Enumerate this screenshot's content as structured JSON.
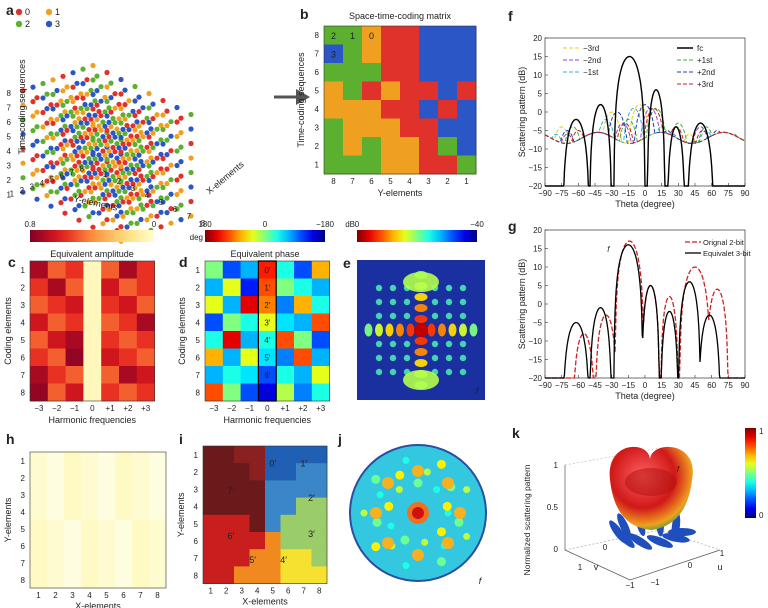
{
  "panels": {
    "a": {
      "label": "a",
      "legend": [
        "0",
        "1",
        "2",
        "3"
      ],
      "legend_colors": [
        "#e0312b",
        "#f0a020",
        "#5bb030",
        "#2a56c6"
      ],
      "zlabel": "Time-coding sequences",
      "ylabel": "Y-elements",
      "xlabel": "X-elements",
      "zticks": [
        "1",
        "2",
        "3",
        "4",
        "5",
        "6",
        "7",
        "8"
      ],
      "yticks": [
        "8",
        "7",
        "6",
        "5",
        "4",
        "3",
        "2",
        "1"
      ],
      "xticks": [
        "1",
        "2",
        "3",
        "4",
        "5",
        "6",
        "7",
        "8"
      ]
    },
    "b": {
      "label": "b",
      "title": "Space-time-coding matrix",
      "ylabel": "Time-coding sequences",
      "xlabel": "Y-elements",
      "yticks": [
        "8",
        "7",
        "6",
        "5",
        "4",
        "3",
        "2",
        "1"
      ],
      "xticks": [
        "8",
        "7",
        "6",
        "5",
        "4",
        "3",
        "2",
        "1"
      ],
      "annotations": [
        "2",
        "1",
        "0",
        "3"
      ]
    },
    "c": {
      "label": "c",
      "title": "Equivalent amplitude",
      "cbar_left": "0.8",
      "cbar_right": "0",
      "ylabel": "Coding elements",
      "xlabel": "Harmonic frequencies",
      "xticks": [
        "−3",
        "−2",
        "−1",
        "0",
        "+1",
        "+2",
        "+3"
      ],
      "yticks": [
        "1",
        "2",
        "3",
        "4",
        "5",
        "6",
        "7",
        "8"
      ]
    },
    "d": {
      "label": "d",
      "title": "Equivalent phase",
      "cbar_unit": "deg",
      "cbar_left": "180",
      "cbar_mid": "0",
      "cbar_right": "−180",
      "ylabel": "Coding elements",
      "xlabel": "Harmonic frequencies",
      "xticks": [
        "−3",
        "−2",
        "−1",
        "0",
        "+1",
        "+2",
        "+3"
      ],
      "yticks": [
        "1",
        "2",
        "3",
        "4",
        "5",
        "6",
        "7",
        "8"
      ],
      "primes": [
        "0′",
        "1′",
        "2′",
        "3′",
        "4′",
        "5′",
        "6′",
        "7′"
      ]
    },
    "e": {
      "label": "e",
      "cbar_unit": "dB",
      "cbar_left": "0",
      "cbar_right": "−40",
      "tag": "fc"
    },
    "f": {
      "label": "f",
      "ylabel": "Scattering pattern (dB)",
      "xlabel": "Theta (degree)",
      "legend": [
        "−3rd",
        "−2nd",
        "−1st",
        "fc",
        "+1st",
        "+2nd",
        "+3rd"
      ],
      "yticks": [
        "20",
        "15",
        "10",
        "5",
        "0",
        "−5",
        "−10",
        "−15",
        "−20"
      ],
      "xticks": [
        "−90",
        "−75",
        "−60",
        "−45",
        "−30",
        "−15",
        "0",
        "15",
        "30",
        "45",
        "60",
        "75",
        "90"
      ]
    },
    "g": {
      "label": "g",
      "ylabel": "Scattering pattern (dB)",
      "xlabel": "Theta (degree)",
      "legend": [
        "Orignal 2-bit",
        "Equivalet 3-bit"
      ],
      "tag": "fc",
      "yticks": [
        "20",
        "15",
        "10",
        "5",
        "0",
        "−5",
        "−10",
        "−15",
        "−20"
      ],
      "xticks": [
        "−90",
        "−75",
        "−60",
        "−45",
        "−30",
        "−15",
        "0",
        "15",
        "30",
        "45",
        "60",
        "75",
        "90"
      ]
    },
    "h": {
      "label": "h",
      "ylabel": "Y-elements",
      "xlabel": "X-elements",
      "yticks": [
        "1",
        "2",
        "3",
        "4",
        "5",
        "6",
        "7",
        "8"
      ],
      "xticks": [
        "1",
        "2",
        "3",
        "4",
        "5",
        "6",
        "7",
        "8"
      ]
    },
    "i": {
      "label": "i",
      "ylabel": "Y-elements",
      "xlabel": "X-elements",
      "yticks": [
        "1",
        "2",
        "3",
        "4",
        "5",
        "6",
        "7",
        "8"
      ],
      "xticks": [
        "1",
        "2",
        "3",
        "4",
        "5",
        "6",
        "7",
        "8"
      ],
      "primes": [
        "0′",
        "1′",
        "7′",
        "2′",
        "6′",
        "3′",
        "5′",
        "4′"
      ]
    },
    "j": {
      "label": "j",
      "tag": "fc"
    },
    "k": {
      "label": "k",
      "zlabel": "Normalized scattering pattern",
      "tag": "fc",
      "cbar_ticks": [
        "1",
        "0"
      ],
      "zticks": [
        "1",
        "0.5",
        "0"
      ],
      "vlabel": "v",
      "ulabel": "u",
      "vticks": [
        "1",
        "0",
        "−1"
      ],
      "uticks": [
        "−1",
        "0",
        "1"
      ]
    }
  },
  "chart_data": [
    {
      "type": "line",
      "panel": "f",
      "x": [
        -90,
        -75,
        -60,
        -45,
        -30,
        -15,
        0,
        15,
        30,
        45,
        60,
        75,
        90
      ],
      "series": [
        {
          "name": "fc",
          "values": [
            -20,
            -20,
            -2,
            -10,
            3,
            15,
            7,
            -3,
            -5,
            -8,
            -3,
            -12,
            -20
          ]
        }
      ],
      "xlabel": "Theta (degree)",
      "ylabel": "Scattering pattern (dB)",
      "ylim": [
        -20,
        20
      ]
    },
    {
      "type": "line",
      "panel": "g",
      "x": [
        -90,
        -75,
        -60,
        -45,
        -30,
        -15,
        0,
        15,
        30,
        45,
        60,
        75,
        90
      ],
      "series": [
        {
          "name": "Orignal 2-bit",
          "values": [
            -20,
            -20,
            -10,
            -5,
            0,
            17,
            5,
            -2,
            2,
            10,
            5,
            -20,
            -20
          ]
        },
        {
          "name": "Equivalet 3-bit",
          "values": [
            -20,
            -20,
            -5,
            -2,
            5,
            16,
            5,
            -3,
            -2,
            5,
            -5,
            -20,
            -20
          ]
        }
      ],
      "xlabel": "Theta (degree)",
      "ylabel": "Scattering pattern (dB)",
      "ylim": [
        -20,
        20
      ]
    }
  ]
}
